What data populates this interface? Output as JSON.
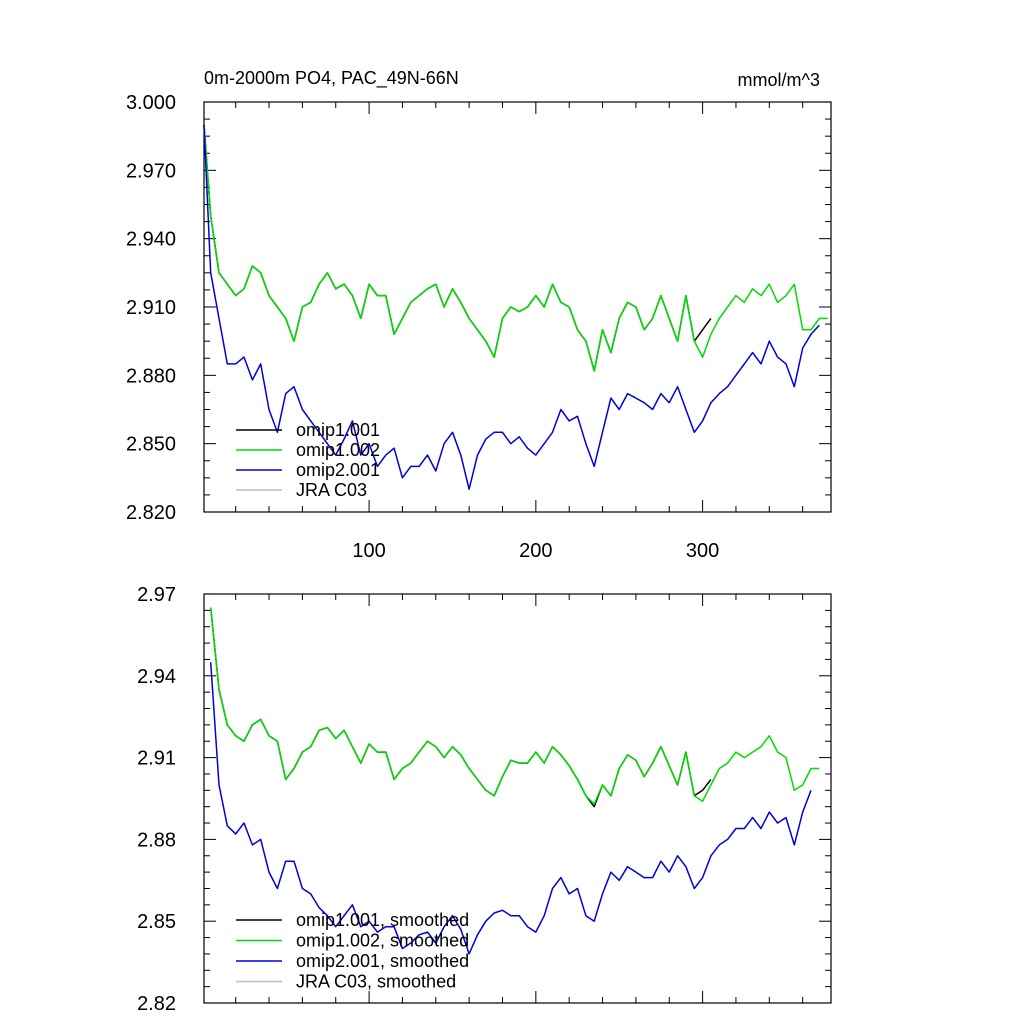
{
  "chart_data": [
    {
      "type": "line",
      "title": "0m-2000m PO4, PAC_49N-66N",
      "units": "mmol/m^3",
      "xlim": [
        1,
        377
      ],
      "ylim": [
        2.82,
        3.0
      ],
      "xticks": [
        100,
        200,
        300
      ],
      "xtick_labels": [
        "100",
        "200",
        "300"
      ],
      "yticks": [
        2.82,
        2.85,
        2.88,
        2.91,
        2.94,
        2.97,
        3.0
      ],
      "ytick_labels": [
        "2.820",
        "2.850",
        "2.880",
        "2.910",
        "2.940",
        "2.970",
        "3.000"
      ],
      "legend_position": "lower-left",
      "series": [
        {
          "name": "omip1.001",
          "color": "#000000",
          "x": [
            1,
            5,
            10,
            15,
            20,
            25,
            30,
            35,
            40,
            45,
            50,
            55,
            60,
            65,
            70,
            75,
            80,
            85,
            90,
            95,
            100,
            105,
            110,
            115,
            120,
            125,
            130,
            135,
            140,
            145,
            150,
            155,
            160,
            165,
            170,
            175,
            180,
            185,
            190,
            195,
            200,
            205,
            210,
            215,
            220,
            225,
            230,
            235,
            240,
            245,
            250,
            255,
            260,
            265,
            270,
            275,
            280,
            285,
            290,
            295,
            300,
            305
          ],
          "values": [
            2.99,
            2.95,
            2.925,
            2.92,
            2.915,
            2.918,
            2.928,
            2.925,
            2.915,
            2.91,
            2.905,
            2.895,
            2.91,
            2.912,
            2.92,
            2.925,
            2.918,
            2.92,
            2.915,
            2.905,
            2.92,
            2.915,
            2.915,
            2.898,
            2.905,
            2.912,
            2.915,
            2.918,
            2.92,
            2.91,
            2.918,
            2.912,
            2.905,
            2.9,
            2.895,
            2.888,
            2.905,
            2.91,
            2.908,
            2.91,
            2.915,
            2.91,
            2.92,
            2.912,
            2.91,
            2.9,
            2.895,
            2.882,
            2.9,
            2.89,
            2.905,
            2.912,
            2.91,
            2.9,
            2.905,
            2.915,
            2.905,
            2.895,
            2.915,
            2.895,
            2.9,
            2.905
          ]
        },
        {
          "name": "omip1.002",
          "color": "#00dd00",
          "x": [
            1,
            5,
            10,
            15,
            20,
            25,
            30,
            35,
            40,
            45,
            50,
            55,
            60,
            65,
            70,
            75,
            80,
            85,
            90,
            95,
            100,
            105,
            110,
            115,
            120,
            125,
            130,
            135,
            140,
            145,
            150,
            155,
            160,
            165,
            170,
            175,
            180,
            185,
            190,
            195,
            200,
            205,
            210,
            215,
            220,
            225,
            230,
            235,
            240,
            245,
            250,
            255,
            260,
            265,
            270,
            275,
            280,
            285,
            290,
            295,
            300,
            305,
            310,
            315,
            320,
            325,
            330,
            335,
            340,
            345,
            350,
            355,
            360,
            365,
            370,
            375
          ],
          "values": [
            2.99,
            2.95,
            2.925,
            2.92,
            2.915,
            2.918,
            2.928,
            2.925,
            2.915,
            2.91,
            2.905,
            2.895,
            2.91,
            2.912,
            2.92,
            2.925,
            2.918,
            2.92,
            2.915,
            2.905,
            2.92,
            2.915,
            2.915,
            2.898,
            2.905,
            2.912,
            2.915,
            2.918,
            2.92,
            2.91,
            2.918,
            2.912,
            2.905,
            2.9,
            2.895,
            2.888,
            2.905,
            2.91,
            2.908,
            2.91,
            2.915,
            2.91,
            2.92,
            2.912,
            2.91,
            2.9,
            2.895,
            2.882,
            2.9,
            2.89,
            2.905,
            2.912,
            2.91,
            2.9,
            2.905,
            2.915,
            2.905,
            2.895,
            2.915,
            2.895,
            2.888,
            2.898,
            2.905,
            2.91,
            2.915,
            2.912,
            2.918,
            2.915,
            2.92,
            2.912,
            2.915,
            2.92,
            2.9,
            2.9,
            2.905,
            2.905
          ]
        },
        {
          "name": "omip2.001",
          "color": "#0000dd",
          "x": [
            1,
            5,
            10,
            15,
            20,
            25,
            30,
            35,
            40,
            45,
            50,
            55,
            60,
            65,
            70,
            75,
            80,
            85,
            90,
            95,
            100,
            105,
            110,
            115,
            120,
            125,
            130,
            135,
            140,
            145,
            150,
            155,
            160,
            165,
            170,
            175,
            180,
            185,
            190,
            195,
            200,
            205,
            210,
            215,
            220,
            225,
            230,
            235,
            240,
            245,
            250,
            255,
            260,
            265,
            270,
            275,
            280,
            285,
            290,
            295,
            300,
            305,
            310,
            315,
            320,
            325,
            330,
            335,
            340,
            345,
            350,
            355,
            360,
            365,
            370
          ],
          "values": [
            2.99,
            2.925,
            2.905,
            2.885,
            2.885,
            2.888,
            2.878,
            2.885,
            2.865,
            2.855,
            2.872,
            2.875,
            2.865,
            2.86,
            2.855,
            2.85,
            2.845,
            2.852,
            2.86,
            2.845,
            2.85,
            2.84,
            2.845,
            2.848,
            2.835,
            2.84,
            2.84,
            2.845,
            2.838,
            2.85,
            2.855,
            2.845,
            2.83,
            2.845,
            2.852,
            2.855,
            2.855,
            2.85,
            2.853,
            2.848,
            2.845,
            2.85,
            2.855,
            2.865,
            2.86,
            2.862,
            2.85,
            2.84,
            2.855,
            2.87,
            2.865,
            2.872,
            2.87,
            2.868,
            2.865,
            2.872,
            2.868,
            2.875,
            2.865,
            2.855,
            2.86,
            2.868,
            2.872,
            2.875,
            2.88,
            2.885,
            2.89,
            2.885,
            2.895,
            2.888,
            2.885,
            2.875,
            2.892,
            2.898,
            2.902
          ]
        },
        {
          "name": "JRA C03",
          "color": "#bbbbbb",
          "x": [],
          "values": []
        }
      ]
    },
    {
      "type": "line",
      "title": "",
      "xlim": [
        1,
        377
      ],
      "ylim": [
        2.82,
        2.97
      ],
      "xticks": [
        100,
        200,
        300
      ],
      "yticks": [
        2.82,
        2.85,
        2.88,
        2.91,
        2.94,
        2.97
      ],
      "ytick_labels": [
        "2.82",
        "2.85",
        "2.88",
        "2.91",
        "2.94",
        "2.97"
      ],
      "legend_position": "lower-left",
      "series": [
        {
          "name": "omip1.001, smoothed",
          "color": "#000000",
          "x": [
            5,
            10,
            15,
            20,
            25,
            30,
            35,
            40,
            45,
            50,
            55,
            60,
            65,
            70,
            75,
            80,
            85,
            90,
            95,
            100,
            105,
            110,
            115,
            120,
            125,
            130,
            135,
            140,
            145,
            150,
            155,
            160,
            165,
            170,
            175,
            180,
            185,
            190,
            195,
            200,
            205,
            210,
            215,
            220,
            225,
            230,
            235,
            240,
            245,
            250,
            255,
            260,
            265,
            270,
            275,
            280,
            285,
            290,
            295,
            300,
            305
          ],
          "values": [
            2.965,
            2.935,
            2.922,
            2.918,
            2.916,
            2.922,
            2.924,
            2.918,
            2.916,
            2.902,
            2.906,
            2.912,
            2.914,
            2.92,
            2.921,
            2.917,
            2.92,
            2.914,
            2.908,
            2.915,
            2.912,
            2.912,
            2.902,
            2.906,
            2.908,
            2.912,
            2.916,
            2.914,
            2.91,
            2.914,
            2.911,
            2.906,
            2.902,
            2.898,
            2.896,
            2.903,
            2.909,
            2.908,
            2.908,
            2.912,
            2.908,
            2.914,
            2.911,
            2.907,
            2.902,
            2.896,
            2.892,
            2.9,
            2.896,
            2.906,
            2.911,
            2.909,
            2.903,
            2.908,
            2.914,
            2.907,
            2.9,
            2.912,
            2.896,
            2.898,
            2.902
          ]
        },
        {
          "name": "omip1.002, smoothed",
          "color": "#00dd00",
          "x": [
            5,
            10,
            15,
            20,
            25,
            30,
            35,
            40,
            45,
            50,
            55,
            60,
            65,
            70,
            75,
            80,
            85,
            90,
            95,
            100,
            105,
            110,
            115,
            120,
            125,
            130,
            135,
            140,
            145,
            150,
            155,
            160,
            165,
            170,
            175,
            180,
            185,
            190,
            195,
            200,
            205,
            210,
            215,
            220,
            225,
            230,
            235,
            240,
            245,
            250,
            255,
            260,
            265,
            270,
            275,
            280,
            285,
            290,
            295,
            300,
            305,
            310,
            315,
            320,
            325,
            330,
            335,
            340,
            345,
            350,
            355,
            360,
            365,
            370
          ],
          "values": [
            2.965,
            2.935,
            2.922,
            2.918,
            2.916,
            2.922,
            2.924,
            2.918,
            2.916,
            2.902,
            2.906,
            2.912,
            2.914,
            2.92,
            2.921,
            2.917,
            2.92,
            2.914,
            2.908,
            2.915,
            2.912,
            2.912,
            2.902,
            2.906,
            2.908,
            2.912,
            2.916,
            2.914,
            2.91,
            2.914,
            2.911,
            2.906,
            2.902,
            2.898,
            2.896,
            2.903,
            2.909,
            2.908,
            2.908,
            2.912,
            2.908,
            2.914,
            2.911,
            2.907,
            2.902,
            2.896,
            2.893,
            2.9,
            2.896,
            2.906,
            2.911,
            2.909,
            2.903,
            2.908,
            2.914,
            2.907,
            2.9,
            2.912,
            2.896,
            2.894,
            2.9,
            2.906,
            2.908,
            2.912,
            2.91,
            2.912,
            2.914,
            2.918,
            2.912,
            2.91,
            2.898,
            2.9,
            2.906,
            2.906
          ]
        },
        {
          "name": "omip2.001, smoothed",
          "color": "#0000dd",
          "x": [
            5,
            10,
            15,
            20,
            25,
            30,
            35,
            40,
            45,
            50,
            55,
            60,
            65,
            70,
            75,
            80,
            85,
            90,
            95,
            100,
            105,
            110,
            115,
            120,
            125,
            130,
            135,
            140,
            145,
            150,
            155,
            160,
            165,
            170,
            175,
            180,
            185,
            190,
            195,
            200,
            205,
            210,
            215,
            220,
            225,
            230,
            235,
            240,
            245,
            250,
            255,
            260,
            265,
            270,
            275,
            280,
            285,
            290,
            295,
            300,
            305,
            310,
            315,
            320,
            325,
            330,
            335,
            340,
            345,
            350,
            355,
            360,
            365
          ],
          "values": [
            2.945,
            2.9,
            2.885,
            2.882,
            2.886,
            2.878,
            2.88,
            2.868,
            2.862,
            2.872,
            2.872,
            2.862,
            2.86,
            2.855,
            2.852,
            2.848,
            2.852,
            2.856,
            2.848,
            2.85,
            2.846,
            2.848,
            2.848,
            2.84,
            2.842,
            2.845,
            2.846,
            2.842,
            2.848,
            2.852,
            2.847,
            2.838,
            2.845,
            2.85,
            2.853,
            2.854,
            2.852,
            2.852,
            2.848,
            2.846,
            2.852,
            2.862,
            2.866,
            2.86,
            2.862,
            2.852,
            2.85,
            2.86,
            2.868,
            2.865,
            2.87,
            2.868,
            2.866,
            2.866,
            2.872,
            2.868,
            2.874,
            2.87,
            2.862,
            2.866,
            2.874,
            2.878,
            2.88,
            2.884,
            2.884,
            2.888,
            2.884,
            2.89,
            2.886,
            2.888,
            2.878,
            2.89,
            2.898
          ]
        },
        {
          "name": "JRA C03, smoothed",
          "color": "#bbbbbb",
          "x": [],
          "values": []
        }
      ]
    }
  ]
}
